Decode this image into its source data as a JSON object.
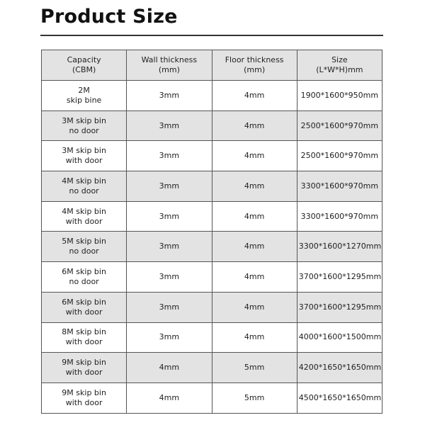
{
  "title": "Product Size",
  "headers": [
    [
      "Capacity",
      "(CBM)"
    ],
    [
      "Wall thickness",
      "(mm)"
    ],
    [
      "Floor thickness",
      "(mm)"
    ],
    [
      "Size",
      "(L*W*H)mm"
    ]
  ],
  "rows": [
    {
      "capacity": [
        "2M",
        "skip bine"
      ],
      "wall": "3mm",
      "floor": "4mm",
      "size": "1900*1600*950mm"
    },
    {
      "capacity": [
        "3M skip bin",
        "no door"
      ],
      "wall": "3mm",
      "floor": "4mm",
      "size": "2500*1600*970mm"
    },
    {
      "capacity": [
        "3M skip bin",
        "with door"
      ],
      "wall": "3mm",
      "floor": "4mm",
      "size": "2500*1600*970mm"
    },
    {
      "capacity": [
        "4M skip bin",
        "no door"
      ],
      "wall": "3mm",
      "floor": "4mm",
      "size": "3300*1600*970mm"
    },
    {
      "capacity": [
        "4M skip bin",
        "with door"
      ],
      "wall": "3mm",
      "floor": "4mm",
      "size": "3300*1600*970mm"
    },
    {
      "capacity": [
        "5M skip bin",
        "no door"
      ],
      "wall": "3mm",
      "floor": "4mm",
      "size": "3300*1600*1270mm"
    },
    {
      "capacity": [
        "6M skip bin",
        "no door"
      ],
      "wall": "3mm",
      "floor": "4mm",
      "size": "3700*1600*1295mm"
    },
    {
      "capacity": [
        "6M skip bin",
        "with door"
      ],
      "wall": "3mm",
      "floor": "4mm",
      "size": "3700*1600*1295mm"
    },
    {
      "capacity": [
        "8M skip bin",
        "with door"
      ],
      "wall": "3mm",
      "floor": "4mm",
      "size": "4000*1600*1500mm"
    },
    {
      "capacity": [
        "9M skip bin",
        "with door"
      ],
      "wall": "4mm",
      "floor": "5mm",
      "size": "4200*1650*1650mm"
    },
    {
      "capacity": [
        "9M skip bin",
        "with door"
      ],
      "wall": "4mm",
      "floor": "5mm",
      "size": "4500*1650*1650mm"
    }
  ],
  "colors": {
    "header_bg": "#e3e3e3",
    "alt_row_bg": "#e3e3e3",
    "border": "#555555"
  }
}
